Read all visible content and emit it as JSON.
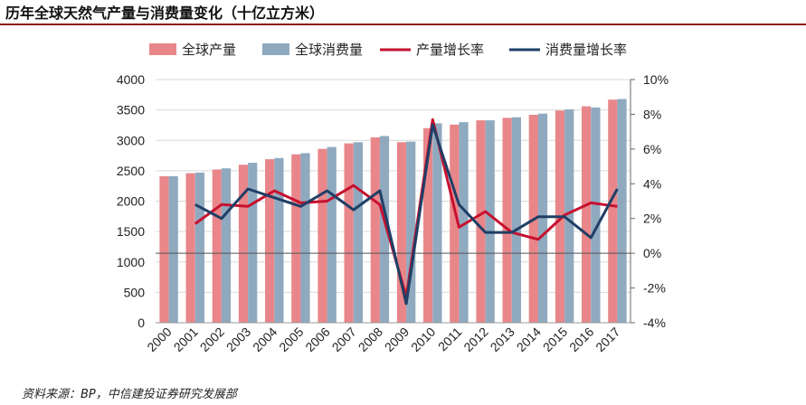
{
  "title": "历年全球天然气产量与消费量变化（十亿立方米）",
  "source": "资料来源：BP，中信建投证券研究发展部",
  "chart_data": {
    "type": "bar",
    "categories": [
      "2000",
      "2001",
      "2002",
      "2003",
      "2004",
      "2005",
      "2006",
      "2007",
      "2008",
      "2009",
      "2010",
      "2011",
      "2012",
      "2013",
      "2014",
      "2015",
      "2016",
      "2017"
    ],
    "series": [
      {
        "name": "全球产量",
        "kind": "bar",
        "axis": "left",
        "color": "#e8868a",
        "values": [
          2410,
          2460,
          2520,
          2600,
          2690,
          2770,
          2860,
          2950,
          3050,
          2970,
          3200,
          3260,
          3330,
          3370,
          3420,
          3490,
          3560,
          3670
        ]
      },
      {
        "name": "全球消费量",
        "kind": "bar",
        "axis": "left",
        "color": "#8fa9bf",
        "values": [
          2410,
          2470,
          2540,
          2630,
          2710,
          2790,
          2890,
          2970,
          3070,
          2980,
          3280,
          3300,
          3330,
          3380,
          3440,
          3510,
          3540,
          3680
        ]
      },
      {
        "name": "产量增长率",
        "kind": "line",
        "axis": "right",
        "color": "#c8102e",
        "values": [
          null,
          1.7,
          2.8,
          2.7,
          3.6,
          2.9,
          3.0,
          3.9,
          2.8,
          -2.5,
          7.7,
          1.5,
          2.4,
          1.2,
          0.8,
          2.2,
          2.9,
          2.7
        ]
      },
      {
        "name": "消费量增长率",
        "kind": "line",
        "axis": "right",
        "color": "#1f3f66",
        "values": [
          null,
          2.8,
          2.0,
          3.7,
          3.2,
          2.7,
          3.6,
          2.5,
          3.6,
          -2.9,
          7.4,
          2.8,
          1.2,
          1.2,
          2.1,
          2.1,
          0.9,
          3.7
        ]
      }
    ],
    "left_axis": {
      "min": 0,
      "max": 4000,
      "step": 500,
      "ticks": [
        "0",
        "500",
        "1000",
        "1500",
        "2000",
        "2500",
        "3000",
        "3500",
        "4000"
      ]
    },
    "right_axis": {
      "min": -4,
      "max": 10,
      "step": 2,
      "ticks": [
        "-4%",
        "-2%",
        "0%",
        "2%",
        "4%",
        "6%",
        "8%",
        "10%"
      ]
    },
    "legend_position": "top",
    "grid": true
  }
}
